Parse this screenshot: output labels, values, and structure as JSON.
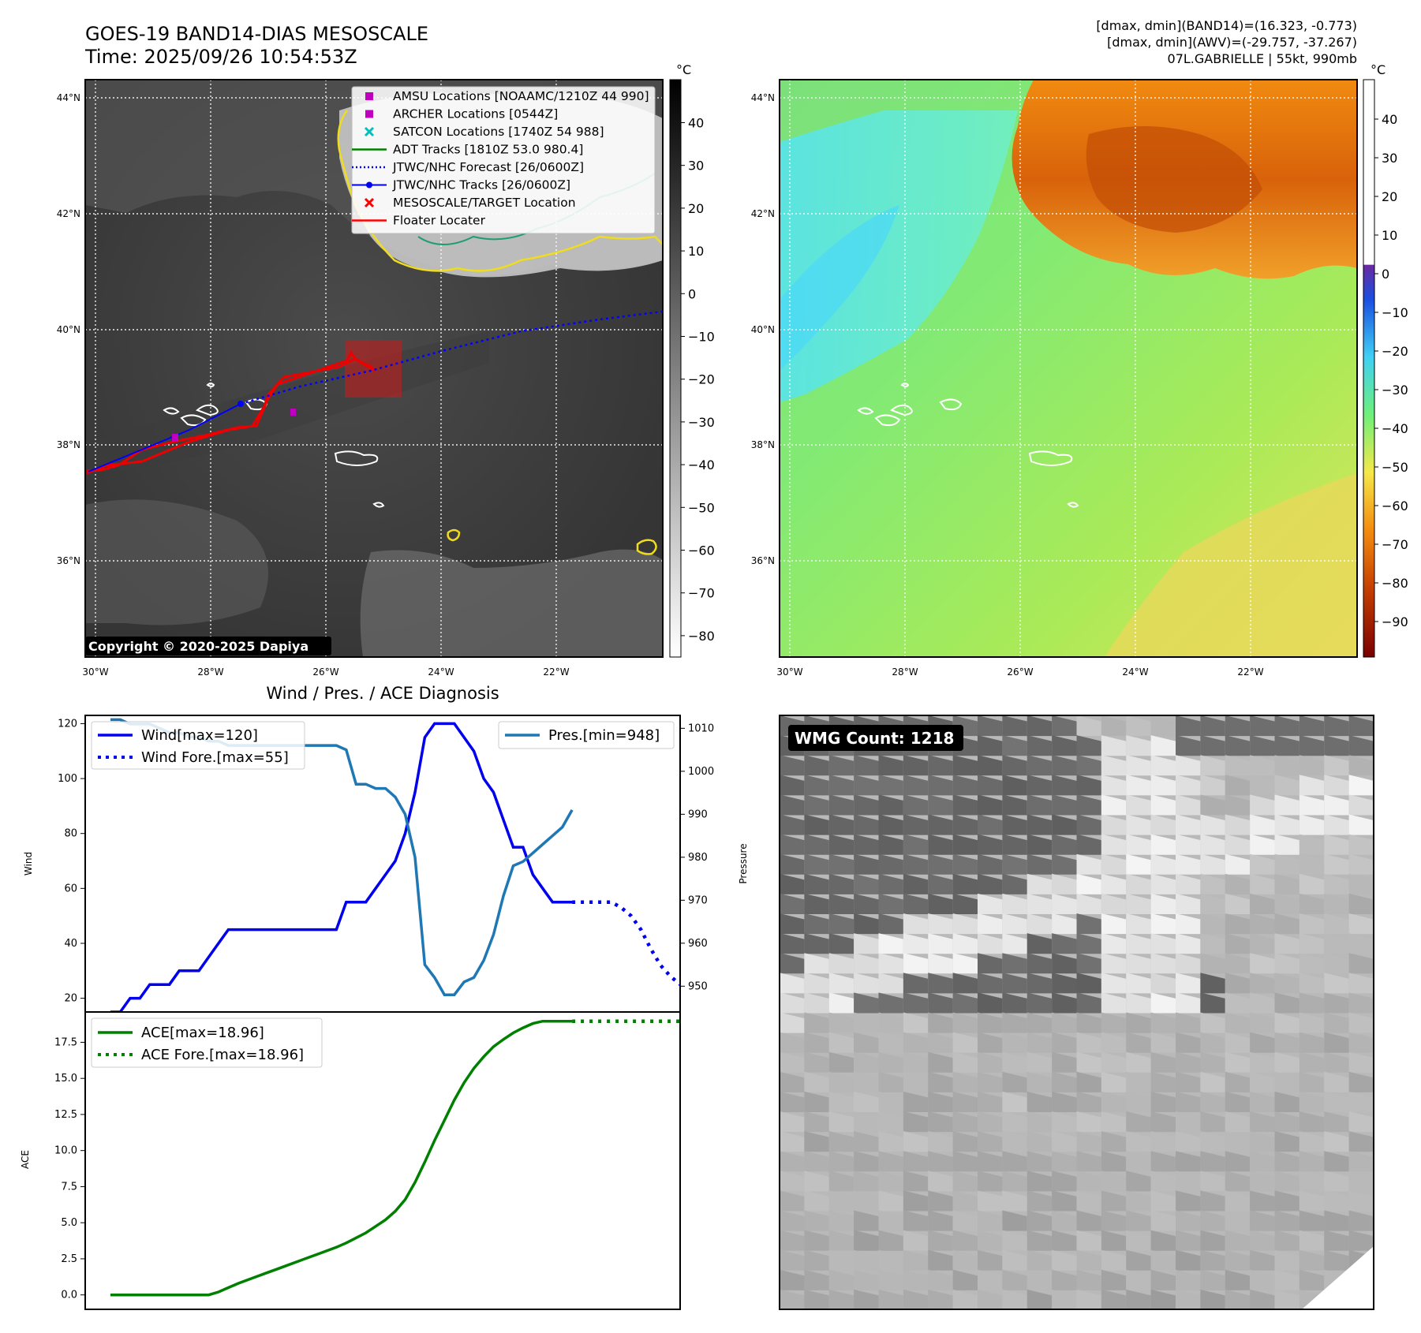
{
  "header": {
    "title_line1": "GOES-19 BAND14-DIAS MESOSCALE",
    "title_line2": "Time: 2025/09/26 10:54:53Z",
    "info_line1": "[dmax, dmin](BAND14)=(16.323, -0.773)",
    "info_line2": "[dmax, dmin](AWV)=(-29.757, -37.267)",
    "info_line3": "07L.GABRIELLE | 55kt, 990mb"
  },
  "ir_map": {
    "lat_labels": [
      "44°N",
      "42°N",
      "40°N",
      "38°N",
      "36°N"
    ],
    "lon_labels": [
      "30°W",
      "28°W",
      "26°W",
      "24°W",
      "22°W"
    ],
    "copyright": "Copyright © 2020-2025 Dapiya",
    "colorbar_unit": "°C",
    "colorbar_ticks": [
      "40",
      "30",
      "20",
      "10",
      "0",
      "−10",
      "−20",
      "−30",
      "−40",
      "−50",
      "−60",
      "−70",
      "−80"
    ],
    "legend": [
      {
        "label": "AMSU Locations [NOAAMC/1210Z 44 990]",
        "marker": "square",
        "color": "#bf00bf"
      },
      {
        "label": "ARCHER Locations [0544Z]",
        "marker": "square",
        "color": "#bf00bf"
      },
      {
        "label": "SATCON Locations [1740Z 54 988]",
        "marker": "x",
        "color": "#00bfbf"
      },
      {
        "label": "ADT Tracks [1810Z 53.0 980.4]",
        "marker": "line",
        "color": "#008000"
      },
      {
        "label": "JTWC/NHC Forecast [26/0600Z]",
        "marker": "dotted",
        "color": "#0000ff"
      },
      {
        "label": "JTWC/NHC Tracks [26/0600Z]",
        "marker": "dotline",
        "color": "#0000ff"
      },
      {
        "label": "MESOSCALE/TARGET Location",
        "marker": "x",
        "color": "#ff0000"
      },
      {
        "label": "Floater Locater",
        "marker": "line",
        "color": "#ff0000"
      }
    ]
  },
  "wv_map": {
    "lat_labels": [
      "44°N",
      "42°N",
      "40°N",
      "38°N",
      "36°N"
    ],
    "lon_labels": [
      "30°W",
      "28°W",
      "26°W",
      "24°W",
      "22°W"
    ],
    "colorbar_unit": "°C",
    "colorbar_ticks": [
      "40",
      "30",
      "20",
      "10",
      "0",
      "−10",
      "−20",
      "−30",
      "−40",
      "−50",
      "−60",
      "−70",
      "−80",
      "−90"
    ]
  },
  "wmg": {
    "badge": "WMG Count: 1218"
  },
  "chart_data": [
    {
      "type": "line",
      "title": "Wind / Pres. / ACE Diagnosis",
      "ylabel": "Wind",
      "y2label": "Pressure",
      "ylim": [
        15,
        123
      ],
      "y2lim": [
        944,
        1013
      ],
      "yticks": [
        "120",
        "100",
        "80",
        "60",
        "40",
        "20"
      ],
      "y2ticks": [
        "1010",
        "1000",
        "990",
        "980",
        "970",
        "960",
        "950"
      ],
      "legend_left": [
        "Wind[max=120]",
        "Wind Fore.[max=55]"
      ],
      "legend_right": [
        "Pres.[min=948]"
      ],
      "series": [
        {
          "name": "Wind[max=120]",
          "axis": "left",
          "color": "#0000ee",
          "style": "solid",
          "x": [
            0,
            1,
            2,
            3,
            4,
            5,
            6,
            7,
            8,
            9,
            10,
            11,
            12,
            13,
            14,
            15,
            16,
            17,
            18,
            19,
            20,
            21,
            22,
            23,
            24,
            25,
            26,
            27,
            28,
            29,
            30,
            31,
            32,
            33,
            34,
            35,
            36,
            37,
            38,
            39,
            40,
            41,
            42,
            43,
            44,
            45,
            46,
            47
          ],
          "values": [
            15,
            15,
            20,
            20,
            25,
            25,
            25,
            30,
            30,
            30,
            35,
            40,
            45,
            45,
            45,
            45,
            45,
            45,
            45,
            45,
            45,
            45,
            45,
            45,
            55,
            55,
            55,
            60,
            65,
            70,
            80,
            95,
            115,
            120,
            120,
            120,
            115,
            110,
            100,
            95,
            85,
            75,
            75,
            65,
            60,
            55,
            55,
            55
          ]
        },
        {
          "name": "Wind Fore.[max=55]",
          "axis": "left",
          "color": "#0000ee",
          "style": "dotted",
          "x": [
            47,
            48,
            49,
            50,
            51,
            52,
            53,
            54,
            55,
            56,
            57,
            58
          ],
          "values": [
            55,
            55,
            55,
            55,
            55,
            53,
            50,
            45,
            38,
            32,
            28,
            25
          ]
        },
        {
          "name": "Pres.[min=948]",
          "axis": "right",
          "color": "#1f77b4",
          "style": "solid",
          "x": [
            0,
            1,
            2,
            3,
            4,
            5,
            6,
            7,
            8,
            9,
            10,
            11,
            12,
            13,
            14,
            15,
            16,
            17,
            18,
            19,
            20,
            21,
            22,
            23,
            24,
            25,
            26,
            27,
            28,
            29,
            30,
            31,
            32,
            33,
            34,
            35,
            36,
            37,
            38,
            39,
            40,
            41,
            42,
            43,
            44,
            45,
            46,
            47
          ],
          "values": [
            1012,
            1012,
            1011,
            1011,
            1011,
            1010,
            1009,
            1009,
            1008,
            1008,
            1007,
            1007,
            1006,
            1006,
            1006,
            1006,
            1006,
            1006,
            1006,
            1006,
            1006,
            1006,
            1006,
            1006,
            1005,
            997,
            997,
            996,
            996,
            994,
            990,
            980,
            955,
            952,
            948,
            948,
            951,
            952,
            956,
            962,
            971,
            978,
            979,
            981,
            983,
            985,
            987,
            991
          ]
        }
      ]
    },
    {
      "type": "line",
      "ylabel": "ACE",
      "ylim": [
        -1,
        19.6
      ],
      "yticks": [
        "17.5",
        "15.0",
        "12.5",
        "10.0",
        "7.5",
        "5.0",
        "2.5",
        "0.0"
      ],
      "legend": [
        "ACE[max=18.96]",
        "ACE Fore.[max=18.96]"
      ],
      "series": [
        {
          "name": "ACE[max=18.96]",
          "color": "#008000",
          "style": "solid",
          "x": [
            0,
            1,
            2,
            3,
            4,
            5,
            6,
            7,
            8,
            9,
            10,
            11,
            12,
            13,
            14,
            15,
            16,
            17,
            18,
            19,
            20,
            21,
            22,
            23,
            24,
            25,
            26,
            27,
            28,
            29,
            30,
            31,
            32,
            33,
            34,
            35,
            36,
            37,
            38,
            39,
            40,
            41,
            42,
            43,
            44,
            45,
            46,
            47
          ],
          "values": [
            0,
            0,
            0,
            0,
            0,
            0,
            0,
            0,
            0,
            0,
            0,
            0.2,
            0.5,
            0.8,
            1.05,
            1.3,
            1.55,
            1.8,
            2.05,
            2.3,
            2.55,
            2.8,
            3.05,
            3.3,
            3.6,
            3.95,
            4.3,
            4.75,
            5.2,
            5.8,
            6.6,
            7.8,
            9.2,
            10.7,
            12.1,
            13.5,
            14.7,
            15.7,
            16.5,
            17.2,
            17.7,
            18.15,
            18.5,
            18.8,
            18.96,
            18.96,
            18.96,
            18.96
          ]
        },
        {
          "name": "ACE Fore.[max=18.96]",
          "color": "#008000",
          "style": "dotted",
          "x": [
            47,
            48,
            49,
            50,
            51,
            52,
            53,
            54,
            55,
            56,
            57,
            58
          ],
          "values": [
            18.96,
            18.96,
            18.96,
            18.96,
            18.96,
            18.96,
            18.96,
            18.96,
            18.96,
            18.96,
            18.96,
            18.96
          ]
        }
      ]
    }
  ]
}
